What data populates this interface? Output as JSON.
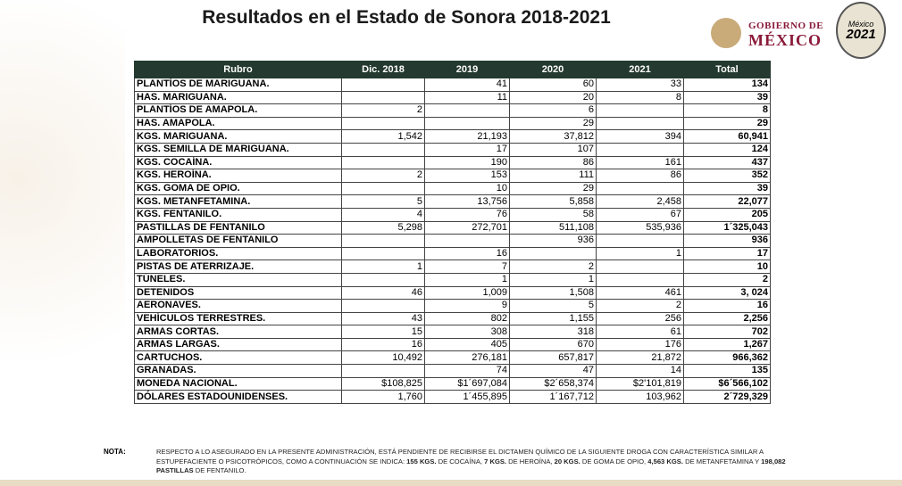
{
  "header": {
    "title": "Resultados en el Estado de Sonora 2018-2021",
    "logo_top": "GOBIERNO DE",
    "logo_bottom": "MÉXICO",
    "badge_top": "México",
    "badge_year": "2021"
  },
  "table": {
    "columns": [
      "Rubro",
      "Dic. 2018",
      "2019",
      "2020",
      "2021",
      "Total"
    ],
    "rows": [
      [
        "PLANTÍOS DE MARIGUANA.",
        null,
        "41",
        "60",
        "33",
        "134"
      ],
      [
        "HAS. MARIGUANA.",
        null,
        "11",
        "20",
        "8",
        "39"
      ],
      [
        "PLANTÍOS DE AMAPOLA.",
        "2",
        null,
        "6",
        null,
        "8"
      ],
      [
        "HAS. AMAPOLA.",
        null,
        null,
        "29",
        null,
        "29"
      ],
      [
        "KGS. MARIGUANA.",
        "1,542",
        "21,193",
        "37,812",
        "394",
        "60,941"
      ],
      [
        "KGS. SEMILLA DE MARIGUANA.",
        null,
        "17",
        "107",
        null,
        "124"
      ],
      [
        "KGS. COCAÍNA.",
        null,
        "190",
        "86",
        "161",
        "437"
      ],
      [
        "KGS. HEROÍNA.",
        "2",
        "153",
        "111",
        "86",
        "352"
      ],
      [
        "KGS. GOMA DE OPIO.",
        null,
        "10",
        "29",
        null,
        "39"
      ],
      [
        "KGS. METANFETAMINA.",
        "5",
        "13,756",
        "5,858",
        "2,458",
        "22,077"
      ],
      [
        "KGS. FENTANILO.",
        "4",
        "76",
        "58",
        "67",
        "205"
      ],
      [
        "PASTILLAS DE FENTANILO",
        "5,298",
        "272,701",
        "511,108",
        "535,936",
        "1´325,043"
      ],
      [
        "AMPOLLETAS DE FENTANILO",
        null,
        null,
        "936",
        null,
        "936"
      ],
      [
        "LABORATORIOS.",
        null,
        "16",
        null,
        "1",
        "17"
      ],
      [
        "PISTAS DE ATERRIZAJE.",
        "1",
        "7",
        "2",
        null,
        "10"
      ],
      [
        "TÚNELES.",
        null,
        "1",
        "1",
        null,
        "2"
      ],
      [
        "DETENIDOS",
        "46",
        "1,009",
        "1,508",
        "461",
        "3, 024"
      ],
      [
        "AERONAVES.",
        null,
        "9",
        "5",
        "2",
        "16"
      ],
      [
        "VEHÍCULOS TERRESTRES.",
        "43",
        "802",
        "1,155",
        "256",
        "2,256"
      ],
      [
        "ARMAS CORTAS.",
        "15",
        "308",
        "318",
        "61",
        "702"
      ],
      [
        "ARMAS LARGAS.",
        "16",
        "405",
        "670",
        "176",
        "1,267"
      ],
      [
        "CARTUCHOS.",
        "10,492",
        "276,181",
        "657,817",
        "21,872",
        "966,362"
      ],
      [
        "GRANADAS.",
        null,
        "74",
        "47",
        "14",
        "135"
      ],
      [
        "MONEDA NACIONAL.",
        "$108,825",
        "$1´697,084",
        "$2´658,374",
        "$2'101,819",
        "$6´566,102"
      ],
      [
        "DÓLARES ESTADOUNIDENSES.",
        "1,760",
        "1´455,895",
        "1´167,712",
        "103,962",
        "2´729,329"
      ]
    ]
  },
  "note": {
    "label": "NOTA:",
    "parts": [
      {
        "text": "RESPECTO A LO ASEGURADO EN LA PRESENTE ADMINISTRACIÓN, ESTÁ PENDIENTE DE RECIBIRSE EL DICTAMEN QUÍMICO DE LA SIGUIENTE DROGA CON CARACTERÍSTICA SIMILAR A ESTUPEFACIENTE O PSICOTRÓPICOS, COMO A CONTINUACIÓN SE INDICA: ",
        "bold": false
      },
      {
        "text": "155 KGS.",
        "bold": true
      },
      {
        "text": " DE COCAÍNA, ",
        "bold": false
      },
      {
        "text": "7 KGS.",
        "bold": true
      },
      {
        "text": " DE HEROÍNA, ",
        "bold": false
      },
      {
        "text": "20 KGS.",
        "bold": true
      },
      {
        "text": " DE GOMA DE OPIO, ",
        "bold": false
      },
      {
        "text": "4,563 KGS.",
        "bold": true
      },
      {
        "text": " DE METANFETAMINA Y ",
        "bold": false
      },
      {
        "text": "198,082 PASTILLAS",
        "bold": true
      },
      {
        "text": " DE FENTANILO.",
        "bold": false
      }
    ]
  }
}
